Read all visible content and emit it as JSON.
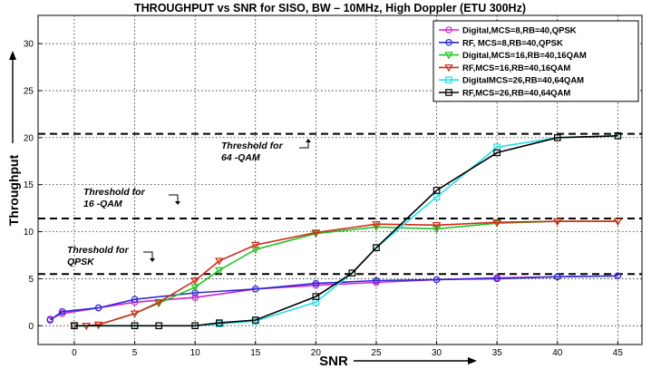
{
  "chart_data": {
    "type": "line",
    "title": "THROUGHPUT vs SNR for SISO, BW – 10MHz, High Doppler (ETU 300Hz)",
    "xlabel": "SNR",
    "ylabel": "Throughput",
    "xlim": [
      -3,
      47
    ],
    "ylim": [
      -2,
      33
    ],
    "xticks": [
      0,
      5,
      10,
      15,
      20,
      25,
      30,
      35,
      40,
      45
    ],
    "yticks": [
      0,
      5,
      10,
      15,
      20,
      25,
      30
    ],
    "grid": true,
    "legend_position": "top-right",
    "thresholds": [
      {
        "y": 5.5,
        "label_lines": [
          "Threshold for",
          "QPSK"
        ]
      },
      {
        "y": 11.4,
        "label_lines": [
          "Threshold for",
          "16 -QAM"
        ]
      },
      {
        "y": 20.4,
        "label_lines": [
          "Threshold for",
          "64 -QAM"
        ]
      }
    ],
    "series": [
      {
        "name": "Digital,MCS=8,RB=40,QPSK",
        "color": "#d21fd2",
        "marker": "circle",
        "x": [
          -2,
          -1,
          2,
          5,
          10,
          15,
          20,
          25,
          30,
          35,
          40,
          45
        ],
        "y": [
          0.7,
          1.3,
          1.9,
          2.5,
          3.0,
          3.9,
          4.3,
          4.6,
          4.9,
          5.1,
          5.2,
          5.3
        ]
      },
      {
        "name": "RF, MCS=8,RB=40,QPSK",
        "color": "#2a2ad4",
        "marker": "circle",
        "x": [
          -2,
          -1,
          2,
          5,
          10,
          15,
          20,
          25,
          30,
          35,
          40,
          45
        ],
        "y": [
          0.6,
          1.5,
          1.9,
          2.8,
          3.5,
          3.9,
          4.5,
          4.8,
          4.9,
          5.0,
          5.2,
          5.3
        ]
      },
      {
        "name": "Digital,MCS=16,RB=40,16QAM",
        "color": "#22c322",
        "marker": "triangle-down",
        "x": [
          0,
          1,
          2,
          5,
          7,
          10,
          12,
          15,
          20,
          25,
          30,
          35,
          40,
          45
        ],
        "y": [
          0,
          0,
          0.1,
          1.3,
          2.4,
          4.1,
          5.9,
          8.1,
          9.8,
          10.5,
          10.3,
          10.9,
          11.1,
          11.1
        ]
      },
      {
        "name": "RF,MCS=16,RB=40,16QAM",
        "color": "#d02a1a",
        "marker": "triangle-down",
        "x": [
          0,
          1,
          2,
          5,
          7,
          10,
          12,
          15,
          20,
          25,
          30,
          35,
          40,
          45
        ],
        "y": [
          0,
          0,
          0.1,
          1.3,
          2.5,
          4.8,
          6.9,
          8.6,
          9.9,
          10.8,
          10.7,
          11.0,
          11.1,
          11.1
        ]
      },
      {
        "name": "DigitalMCS=26,RB=40,64QAM",
        "color": "#22e0e8",
        "marker": "square",
        "x": [
          0,
          5,
          7,
          10,
          12,
          15,
          20,
          23,
          25,
          30,
          35,
          40,
          45
        ],
        "y": [
          0,
          0,
          0,
          0,
          0.2,
          0.5,
          2.5,
          5.6,
          8.3,
          13.7,
          19.0,
          20.0,
          20.2
        ]
      },
      {
        "name": "RF,MCS=26,RB=40,64QAM",
        "color": "#000000",
        "marker": "square",
        "x": [
          0,
          5,
          7,
          10,
          12,
          15,
          20,
          23,
          25,
          30,
          35,
          40,
          45
        ],
        "y": [
          0,
          0,
          0,
          0,
          0.3,
          0.6,
          3.1,
          5.6,
          8.3,
          14.4,
          18.4,
          20.0,
          20.2
        ]
      }
    ]
  }
}
